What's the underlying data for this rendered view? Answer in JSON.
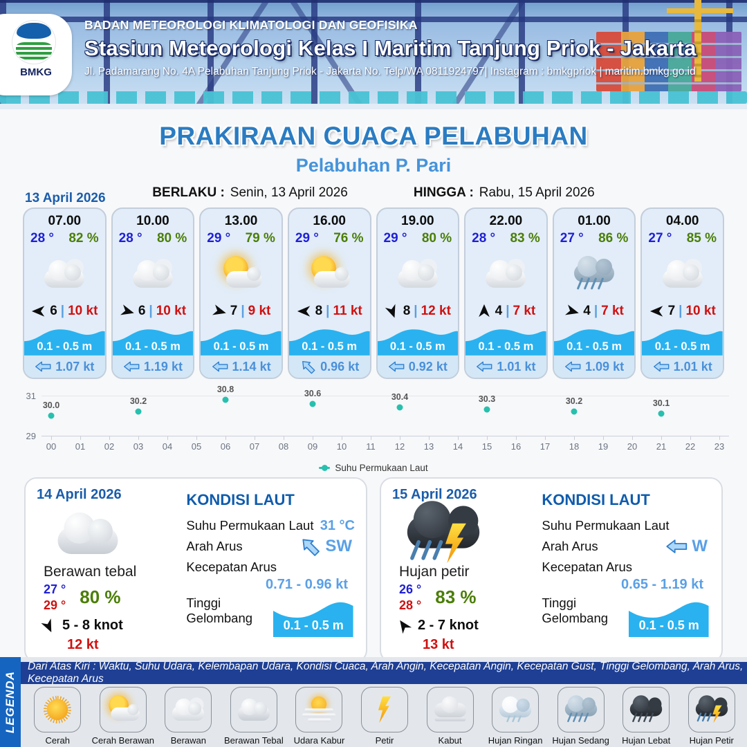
{
  "header": {
    "agency": "BADAN METEOROLOGI KLIMATOLOGI DAN GEOFISIKA",
    "station": "Stasiun Meteorologi Kelas I Maritim Tanjung Priok - Jakarta",
    "contact": "Jl. Padamarang No. 4A Pelabuhan Tanjung Priok - Jakarta No. Telp/WA 0811924797| Instagram : bmkgpriok | maritim.bmkg.go.id",
    "logo_text": "BMKG"
  },
  "title": {
    "main": "PRAKIRAAN CUACA PELABUHAN",
    "subtitle": "Pelabuhan P. Pari",
    "berlaku_label": "BERLAKU :",
    "berlaku_value": "Senin, 13 April 2026",
    "hingga_label": "HINGGA :",
    "hingga_value": "Rabu, 15 April 2026"
  },
  "forecast_date": "13 April 2026",
  "ui": {
    "wind_sep": "|"
  },
  "forecast_cards": [
    {
      "time": "07.00",
      "temp": "28 °",
      "humidity": "82 %",
      "weather_icon": "cloudy-icon",
      "wind_dir_deg": 270,
      "wind_speed": "6",
      "wind_gust": "10 kt",
      "wave_height": "0.1 - 0.5 m",
      "current_speed": "1.07 kt",
      "current_dir_deg": 0
    },
    {
      "time": "10.00",
      "temp": "28 °",
      "humidity": "80 %",
      "weather_icon": "cloudy-icon",
      "wind_dir_deg": 105,
      "wind_speed": "6",
      "wind_gust": "10 kt",
      "wave_height": "0.1 - 0.5 m",
      "current_speed": "1.19 kt",
      "current_dir_deg": 0
    },
    {
      "time": "13.00",
      "temp": "29 °",
      "humidity": "79 %",
      "weather_icon": "sun-cloud-icon",
      "wind_dir_deg": 105,
      "wind_speed": "7",
      "wind_gust": "9 kt",
      "wave_height": "0.1 - 0.5 m",
      "current_speed": "1.14 kt",
      "current_dir_deg": 0
    },
    {
      "time": "16.00",
      "temp": "29 °",
      "humidity": "76 %",
      "weather_icon": "sun-cloud-icon",
      "wind_dir_deg": 270,
      "wind_speed": "8",
      "wind_gust": "11 kt",
      "wave_height": "0.1 - 0.5 m",
      "current_speed": "0.96 kt",
      "current_dir_deg": 45
    },
    {
      "time": "19.00",
      "temp": "29 °",
      "humidity": "80 %",
      "weather_icon": "cloudy-icon",
      "wind_dir_deg": 160,
      "wind_speed": "8",
      "wind_gust": "12 kt",
      "wave_height": "0.1 - 0.5 m",
      "current_speed": "0.92 kt",
      "current_dir_deg": 0
    },
    {
      "time": "22.00",
      "temp": "28 °",
      "humidity": "83 %",
      "weather_icon": "cloudy-icon",
      "wind_dir_deg": 0,
      "wind_speed": "4",
      "wind_gust": "7 kt",
      "wave_height": "0.1 - 0.5 m",
      "current_speed": "1.01 kt",
      "current_dir_deg": 0
    },
    {
      "time": "01.00",
      "temp": "27 °",
      "humidity": "86 %",
      "weather_icon": "moderate-rain-icon",
      "wind_dir_deg": 105,
      "wind_speed": "4",
      "wind_gust": "7 kt",
      "wave_height": "0.1 - 0.5 m",
      "current_speed": "1.09 kt",
      "current_dir_deg": 0
    },
    {
      "time": "04.00",
      "temp": "27 °",
      "humidity": "85 %",
      "weather_icon": "cloudy-icon",
      "wind_dir_deg": 270,
      "wind_speed": "7",
      "wind_gust": "10 kt",
      "wave_height": "0.1 - 0.5 m",
      "current_speed": "1.01 kt",
      "current_dir_deg": 0
    }
  ],
  "chart_data": {
    "type": "scatter",
    "title": "",
    "series_name": "Suhu Permukaan Laut",
    "x": [
      0,
      3,
      6,
      9,
      12,
      15,
      18,
      21
    ],
    "values": [
      30.0,
      30.2,
      30.8,
      30.6,
      30.4,
      30.3,
      30.2,
      30.1
    ],
    "x_ticks": [
      "00",
      "01",
      "02",
      "03",
      "04",
      "05",
      "06",
      "07",
      "08",
      "09",
      "10",
      "11",
      "12",
      "13",
      "14",
      "15",
      "16",
      "17",
      "18",
      "19",
      "20",
      "21",
      "22",
      "23"
    ],
    "xlabel": "",
    "ylabel": "",
    "ylim": [
      29,
      31
    ],
    "y_ticks": [
      "31",
      "29"
    ],
    "grid": true,
    "legend_position": "bottom",
    "dot_color": "#27c0ae"
  },
  "daily_cards": [
    {
      "date": "14 April 2026",
      "weather": "Berawan tebal",
      "weather_icon": "thick-cloud-icon",
      "temp_min": "27 °",
      "temp_max": "29 °",
      "humidity": "80 %",
      "wind_dir_deg": 155,
      "wind_range": "5  - 8 knot",
      "gust": "12 kt",
      "sea": {
        "title": "KONDISI LAUT",
        "sst_label": "Suhu Permukaan Laut",
        "sst_value": "31 °C",
        "current_label": "Arah Arus",
        "current_dir": "SW",
        "current_dir_deg": 45,
        "speed_label": "Kecepatan Arus",
        "speed_value": "0.71  - 0.96 kt",
        "wave_label": "Tinggi Gelombang",
        "wave_value": "0.1 - 0.5 m"
      }
    },
    {
      "date": "15 April 2026",
      "weather": "Hujan petir",
      "weather_icon": "thunderstorm-rain-icon",
      "temp_min": "26 °",
      "temp_max": "28 °",
      "humidity": "83 %",
      "wind_dir_deg": 325,
      "wind_range": "2  - 7 knot",
      "gust": "13 kt",
      "sea": {
        "title": "KONDISI LAUT",
        "sst_label": "Suhu Permukaan Laut",
        "sst_value": "",
        "current_label": "Arah Arus",
        "current_dir": "W",
        "current_dir_deg": 0,
        "speed_label": "Kecepatan Arus",
        "speed_value": "0.65 - 1.19 kt",
        "wave_label": "Tinggi Gelombang",
        "wave_value": "0.1 - 0.5 m"
      }
    }
  ],
  "legend": {
    "tab": "LEGENDA",
    "note": "Dari Atas Kiri : Waktu, Suhu Udara, Kelembapan Udara, Kondisi Cuaca, Arah Angin, Kecepatan Angin, Kecepatan Gust, Tinggi Gelombang, Arah Arus, Kecepatan Arus",
    "items": [
      {
        "label": "Cerah",
        "icon": "sun-icon"
      },
      {
        "label": "Cerah Berawan",
        "icon": "sun-cloud-icon"
      },
      {
        "label": "Berawan",
        "icon": "cloudy-icon"
      },
      {
        "label": "Berawan Tebal",
        "icon": "thick-cloud-icon"
      },
      {
        "label": "Udara Kabur",
        "icon": "haze-icon"
      },
      {
        "label": "Petir",
        "icon": "lightning-icon"
      },
      {
        "label": "Kabut",
        "icon": "fog-icon"
      },
      {
        "label": "Hujan Ringan",
        "icon": "light-rain-icon"
      },
      {
        "label": "Hujan Sedang",
        "icon": "moderate-rain-icon"
      },
      {
        "label": "Hujan Lebat",
        "icon": "heavy-rain-icon"
      },
      {
        "label": "Hujan Petir",
        "icon": "thunderstorm-rain-icon"
      }
    ]
  }
}
